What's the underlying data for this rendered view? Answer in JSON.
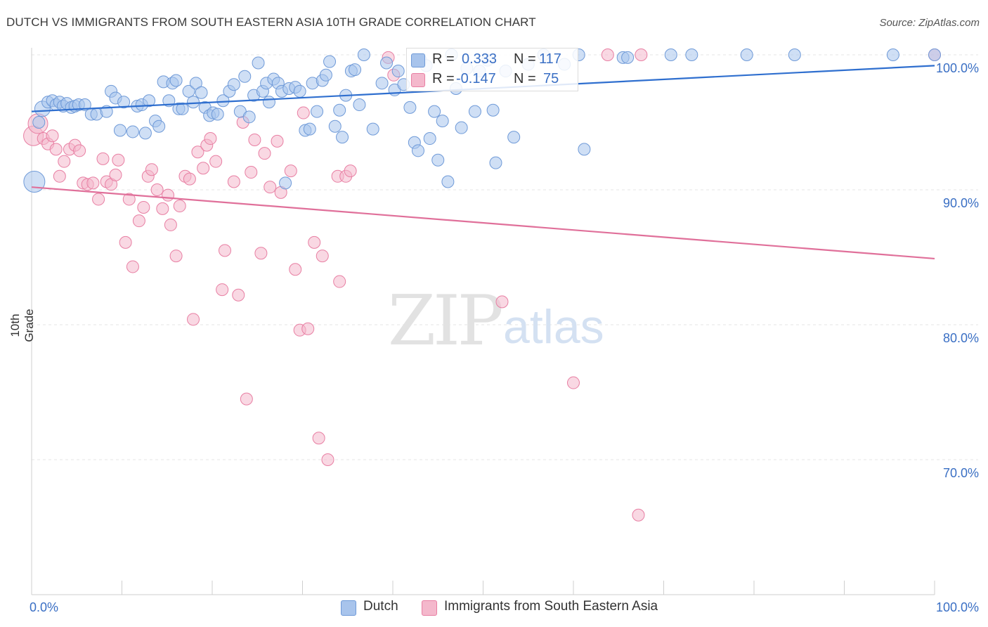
{
  "title": "DUTCH VS IMMIGRANTS FROM SOUTH EASTERN ASIA 10TH GRADE CORRELATION CHART",
  "source": "Source: ZipAtlas.com",
  "watermark": {
    "zip": "ZIP",
    "atlas": "atlas"
  },
  "legend_top": {
    "rows": [
      {
        "r_label": "R =",
        "r_value": "0.333",
        "n_label": "N =",
        "n_value": "117"
      },
      {
        "r_label": "R =",
        "r_value": "-0.147",
        "n_label": "N =",
        "n_value": "75"
      }
    ]
  },
  "legend_bottom": {
    "dutch": "Dutch",
    "sea": "Immigrants from South Eastern Asia"
  },
  "colors": {
    "dutch_fill": "#a8c4ec",
    "dutch_stroke": "#6f9ad8",
    "dutch_line": "#2f6fcf",
    "sea_fill": "#f4b8cc",
    "sea_stroke": "#e87fa3",
    "sea_line": "#e0709a",
    "axis_text": "#3a6fc4",
    "grid": "#e6e6e6"
  },
  "chart_data": {
    "type": "scatter",
    "title": "DUTCH VS IMMIGRANTS FROM SOUTH EASTERN ASIA 10TH GRADE CORRELATION CHART",
    "xlabel": "",
    "ylabel": "10th Grade",
    "xlim": [
      0,
      100
    ],
    "ylim": [
      60,
      100
    ],
    "x_tick_labels": [
      "0.0%",
      "100.0%"
    ],
    "y_ticks": [
      70,
      80,
      90,
      100
    ],
    "y_tick_labels": [
      "70.0%",
      "80.0%",
      "90.0%",
      "100.0%"
    ],
    "grid": true,
    "series": [
      {
        "name": "Dutch",
        "R": 0.333,
        "N": 117,
        "trend": [
          [
            0,
            95.8
          ],
          [
            100,
            99.2
          ]
        ],
        "points": [
          [
            0.3,
            90.6
          ],
          [
            0.8,
            95.0
          ],
          [
            1.2,
            96.0
          ],
          [
            1.8,
            96.5
          ],
          [
            2.3,
            96.6
          ],
          [
            2.7,
            96.3
          ],
          [
            3.1,
            96.5
          ],
          [
            3.5,
            96.2
          ],
          [
            3.9,
            96.4
          ],
          [
            4.4,
            96.1
          ],
          [
            4.8,
            96.2
          ],
          [
            5.2,
            96.3
          ],
          [
            5.9,
            96.3
          ],
          [
            6.6,
            95.6
          ],
          [
            7.2,
            95.6
          ],
          [
            8.3,
            95.8
          ],
          [
            8.8,
            97.3
          ],
          [
            9.3,
            96.8
          ],
          [
            9.8,
            94.4
          ],
          [
            10.2,
            96.5
          ],
          [
            11.2,
            94.3
          ],
          [
            11.7,
            96.2
          ],
          [
            12.2,
            96.3
          ],
          [
            12.6,
            94.2
          ],
          [
            13.0,
            96.6
          ],
          [
            13.7,
            95.1
          ],
          [
            14.1,
            94.7
          ],
          [
            14.6,
            98.0
          ],
          [
            15.2,
            96.6
          ],
          [
            15.6,
            97.9
          ],
          [
            16.0,
            98.1
          ],
          [
            16.3,
            96.0
          ],
          [
            16.7,
            96.0
          ],
          [
            17.4,
            97.3
          ],
          [
            17.9,
            96.5
          ],
          [
            18.2,
            97.9
          ],
          [
            18.8,
            97.2
          ],
          [
            19.2,
            96.1
          ],
          [
            19.7,
            95.5
          ],
          [
            20.1,
            95.7
          ],
          [
            20.6,
            95.6
          ],
          [
            21.2,
            96.6
          ],
          [
            21.9,
            97.3
          ],
          [
            22.4,
            97.8
          ],
          [
            23.1,
            95.8
          ],
          [
            23.6,
            98.4
          ],
          [
            24.1,
            95.4
          ],
          [
            24.6,
            97.0
          ],
          [
            25.1,
            99.4
          ],
          [
            25.6,
            97.3
          ],
          [
            26.0,
            97.9
          ],
          [
            26.3,
            96.5
          ],
          [
            26.8,
            98.2
          ],
          [
            27.3,
            97.9
          ],
          [
            27.7,
            97.3
          ],
          [
            28.1,
            90.5
          ],
          [
            28.5,
            97.5
          ],
          [
            29.2,
            97.6
          ],
          [
            29.7,
            97.3
          ],
          [
            30.3,
            94.4
          ],
          [
            30.8,
            94.5
          ],
          [
            31.1,
            97.9
          ],
          [
            31.6,
            95.8
          ],
          [
            32.2,
            98.1
          ],
          [
            32.6,
            98.5
          ],
          [
            33.0,
            99.5
          ],
          [
            33.6,
            94.7
          ],
          [
            34.1,
            95.9
          ],
          [
            34.4,
            93.9
          ],
          [
            34.8,
            97.0
          ],
          [
            35.4,
            98.8
          ],
          [
            35.8,
            98.9
          ],
          [
            36.3,
            96.3
          ],
          [
            36.8,
            100.0
          ],
          [
            37.8,
            94.5
          ],
          [
            38.8,
            97.9
          ],
          [
            39.3,
            99.4
          ],
          [
            40.2,
            97.4
          ],
          [
            40.6,
            98.8
          ],
          [
            41.2,
            97.8
          ],
          [
            41.9,
            96.1
          ],
          [
            42.4,
            93.5
          ],
          [
            42.8,
            92.9
          ],
          [
            43.1,
            99.6
          ],
          [
            43.7,
            99.2
          ],
          [
            44.1,
            93.8
          ],
          [
            44.6,
            95.8
          ],
          [
            45.0,
            92.2
          ],
          [
            45.5,
            95.1
          ],
          [
            46.1,
            90.6
          ],
          [
            46.5,
            100.0
          ],
          [
            47.0,
            97.5
          ],
          [
            47.6,
            94.6
          ],
          [
            48.2,
            99.0
          ],
          [
            49.1,
            95.8
          ],
          [
            49.6,
            98.8
          ],
          [
            50.5,
            99.6
          ],
          [
            51.1,
            95.9
          ],
          [
            51.4,
            92.0
          ],
          [
            52.5,
            98.8
          ],
          [
            53.4,
            93.9
          ],
          [
            55.0,
            99.3
          ],
          [
            56.7,
            100.0
          ],
          [
            59.0,
            99.3
          ],
          [
            60.6,
            100.0
          ],
          [
            61.2,
            93.0
          ],
          [
            65.5,
            99.8
          ],
          [
            66.0,
            99.8
          ],
          [
            70.8,
            100.0
          ],
          [
            73.1,
            100.0
          ],
          [
            79.2,
            100.0
          ],
          [
            84.5,
            100.0
          ],
          [
            95.4,
            100.0
          ],
          [
            100.0,
            100.0
          ]
        ]
      },
      {
        "name": "Immigrants from South Eastern Asia",
        "R": -0.147,
        "N": 75,
        "trend": [
          [
            0,
            90.2
          ],
          [
            100,
            84.9
          ]
        ],
        "points": [
          [
            0.2,
            94.0
          ],
          [
            0.7,
            94.9
          ],
          [
            1.3,
            93.8
          ],
          [
            1.8,
            93.4
          ],
          [
            2.3,
            94.0
          ],
          [
            2.7,
            93.0
          ],
          [
            3.1,
            91.0
          ],
          [
            3.6,
            92.1
          ],
          [
            4.2,
            93.0
          ],
          [
            4.8,
            93.3
          ],
          [
            5.3,
            92.9
          ],
          [
            5.7,
            90.5
          ],
          [
            6.2,
            90.4
          ],
          [
            6.8,
            90.5
          ],
          [
            7.4,
            89.3
          ],
          [
            7.9,
            92.3
          ],
          [
            8.3,
            90.6
          ],
          [
            8.8,
            90.4
          ],
          [
            9.3,
            91.1
          ],
          [
            9.6,
            92.2
          ],
          [
            10.4,
            86.1
          ],
          [
            10.8,
            89.3
          ],
          [
            11.2,
            84.3
          ],
          [
            11.9,
            87.7
          ],
          [
            12.4,
            88.7
          ],
          [
            12.9,
            91.0
          ],
          [
            13.3,
            91.5
          ],
          [
            13.9,
            90.0
          ],
          [
            14.5,
            88.6
          ],
          [
            15.1,
            89.6
          ],
          [
            15.4,
            87.4
          ],
          [
            16.0,
            85.1
          ],
          [
            16.4,
            88.8
          ],
          [
            17.0,
            91.0
          ],
          [
            17.5,
            90.8
          ],
          [
            17.9,
            80.4
          ],
          [
            18.4,
            92.8
          ],
          [
            19.0,
            91.6
          ],
          [
            19.4,
            93.3
          ],
          [
            19.8,
            93.8
          ],
          [
            20.4,
            92.1
          ],
          [
            21.1,
            82.6
          ],
          [
            21.4,
            85.5
          ],
          [
            22.4,
            90.6
          ],
          [
            22.9,
            82.2
          ],
          [
            23.4,
            95.0
          ],
          [
            23.8,
            74.5
          ],
          [
            24.3,
            91.3
          ],
          [
            24.7,
            93.7
          ],
          [
            25.4,
            85.3
          ],
          [
            25.8,
            92.7
          ],
          [
            26.4,
            90.2
          ],
          [
            27.2,
            93.6
          ],
          [
            27.6,
            89.8
          ],
          [
            28.7,
            91.4
          ],
          [
            29.2,
            84.1
          ],
          [
            29.7,
            79.6
          ],
          [
            30.1,
            95.7
          ],
          [
            30.6,
            79.7
          ],
          [
            31.3,
            86.1
          ],
          [
            31.8,
            71.6
          ],
          [
            32.2,
            85.1
          ],
          [
            32.8,
            70.0
          ],
          [
            33.9,
            91.0
          ],
          [
            34.1,
            83.2
          ],
          [
            34.8,
            91.0
          ],
          [
            35.3,
            91.4
          ],
          [
            39.5,
            99.8
          ],
          [
            40.1,
            98.5
          ],
          [
            52.1,
            81.7
          ],
          [
            60.0,
            75.7
          ],
          [
            63.8,
            100.0
          ],
          [
            67.5,
            100.0
          ],
          [
            67.2,
            65.9
          ],
          [
            100.0,
            100.0
          ]
        ]
      }
    ]
  }
}
